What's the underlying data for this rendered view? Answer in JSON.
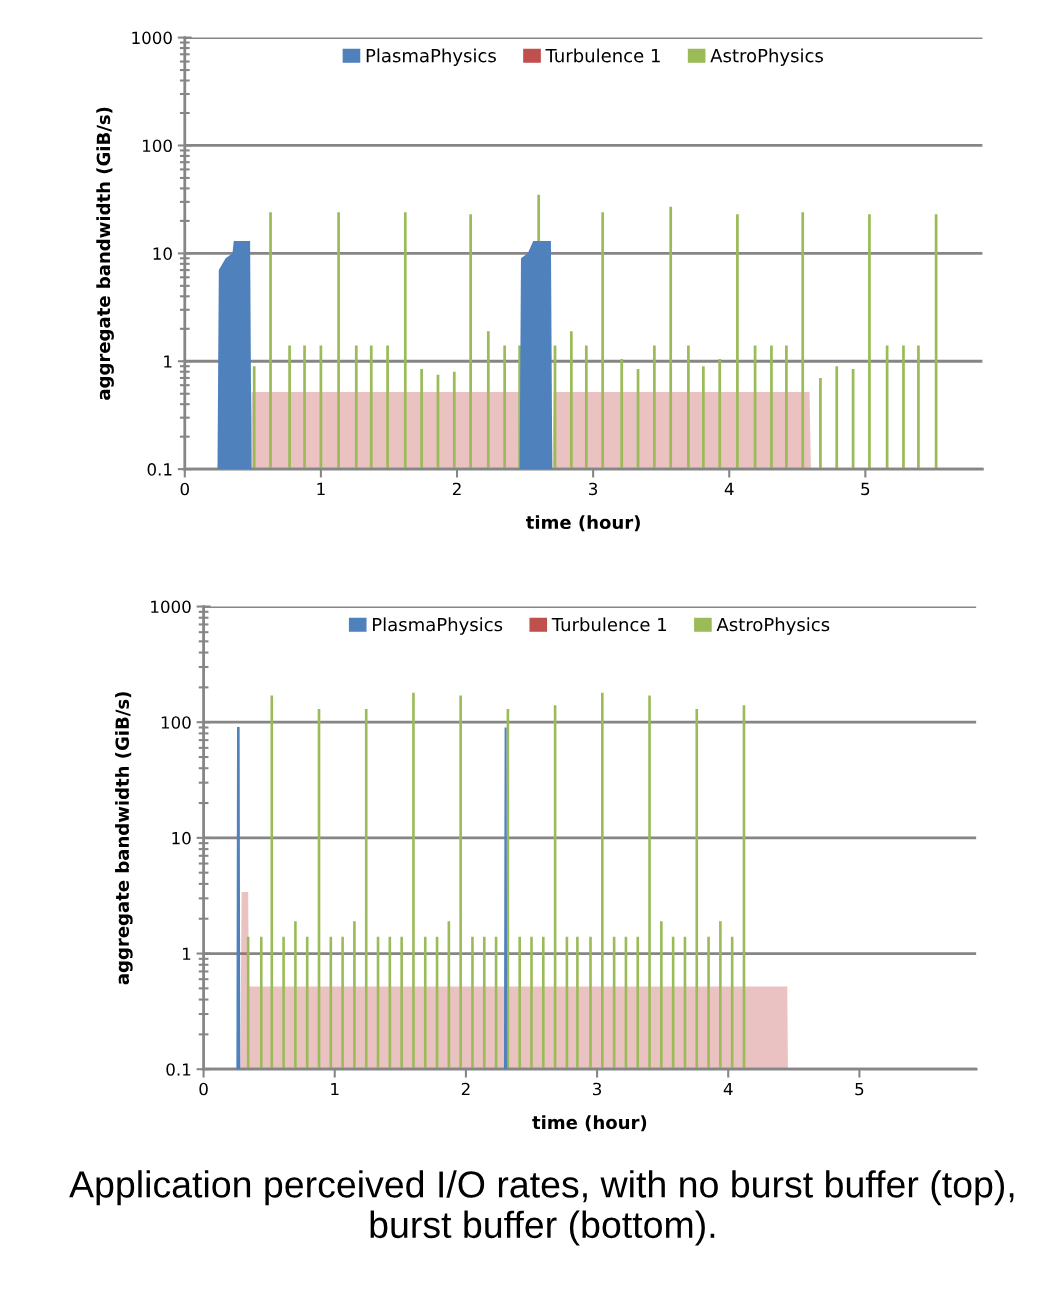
{
  "chart_data": [
    {
      "type": "bar",
      "xlabel": "time (hour)",
      "ylabel": "aggregate bandwidth (GiB/s)",
      "log": "y",
      "grid": "y",
      "legend": "top",
      "xlim": [
        0,
        5.86
      ],
      "xticks": [
        0,
        1,
        2,
        3,
        4,
        5
      ],
      "ylim": [
        0.1,
        1000
      ],
      "yticks": [
        0.1,
        1,
        10,
        100,
        1000
      ],
      "series": [
        {
          "name": "PlasmaPhysics",
          "type": "area",
          "color": "#4f81bd",
          "x": [
            0,
            0.24,
            0.25,
            0.3,
            0.35,
            0.36,
            0.48,
            0.49,
            2.46,
            2.47,
            2.52,
            2.56,
            2.69,
            2.7,
            5.86
          ],
          "values": [
            0.1,
            0.1,
            7,
            9,
            10,
            13,
            13,
            0.1,
            0.1,
            9,
            10,
            13,
            13,
            0.1,
            0.1
          ]
        },
        {
          "name": "Turbulence 1",
          "type": "area",
          "color": "#c0504d",
          "x": [
            0.48,
            0.49,
            2.46,
            2.47,
            2.7,
            2.71,
            4.59,
            4.6
          ],
          "values": [
            0.1,
            0.52,
            0.52,
            0.1,
            0.1,
            0.52,
            0.52,
            0.1
          ]
        },
        {
          "name": "AstroPhysics",
          "color": "#9bbb59",
          "x": [
            0.51,
            0.63,
            0.77,
            0.88,
            1.0,
            1.13,
            1.26,
            1.37,
            1.49,
            1.62,
            1.74,
            1.86,
            1.98,
            2.1,
            2.23,
            2.35,
            2.46,
            2.6,
            2.72,
            2.84,
            2.95,
            3.07,
            3.21,
            3.33,
            3.45,
            3.57,
            3.7,
            3.81,
            3.93,
            4.06,
            4.19,
            4.31,
            4.42,
            4.54,
            4.67,
            4.79,
            4.91,
            5.03,
            5.16,
            5.28,
            5.39,
            5.52
          ],
          "values": [
            0.9,
            24,
            1.4,
            1.4,
            1.4,
            24,
            1.4,
            1.4,
            1.4,
            24,
            0.85,
            0.75,
            0.8,
            23,
            1.9,
            1.4,
            1.4,
            35,
            1.4,
            1.9,
            1.4,
            24,
            1.05,
            0.85,
            1.4,
            27,
            1.4,
            0.9,
            1.05,
            23,
            1.4,
            1.4,
            1.4,
            24,
            0.7,
            0.9,
            0.85,
            23,
            1.4,
            1.4,
            1.4,
            23
          ]
        }
      ]
    },
    {
      "type": "bar",
      "xlabel": "time (hour)",
      "ylabel": "aggregate bandwidth (GiB/s)",
      "log": "y",
      "grid": "y",
      "legend": "top",
      "xlim": [
        0,
        5.89
      ],
      "xticks": [
        0,
        1,
        2,
        3,
        4,
        5
      ],
      "ylim": [
        0.1,
        1000
      ],
      "yticks": [
        0.1,
        1,
        10,
        100,
        1000
      ],
      "annotations": [
        "Application perceived I/O rates, with no burst buffer (top), burst buffer (bottom)."
      ],
      "series": [
        {
          "name": "PlasmaPhysics",
          "type": "area",
          "color": "#4f81bd",
          "x": [
            0,
            0.25,
            0.255,
            0.275,
            0.28,
            2.29,
            2.295,
            2.31,
            2.315,
            5.89
          ],
          "values": [
            0.1,
            0.1,
            91,
            91,
            0.1,
            0.1,
            90,
            90,
            0.1,
            0.1
          ]
        },
        {
          "name": "Turbulence 1",
          "type": "area",
          "color": "#c0504d",
          "x": [
            0.28,
            0.29,
            0.34,
            0.345,
            4.45,
            4.455
          ],
          "values": [
            0.1,
            3.4,
            3.4,
            0.52,
            0.52,
            0.1
          ]
        },
        {
          "name": "AstroPhysics",
          "color": "#9bbb59",
          "x": [
            0.34,
            0.44,
            0.52,
            0.61,
            0.7,
            0.79,
            0.88,
            0.97,
            1.06,
            1.15,
            1.24,
            1.33,
            1.42,
            1.51,
            1.6,
            1.69,
            1.78,
            1.87,
            1.96,
            2.05,
            2.14,
            2.23,
            2.32,
            2.41,
            2.5,
            2.59,
            2.68,
            2.77,
            2.85,
            2.95,
            3.04,
            3.13,
            3.22,
            3.31,
            3.4,
            3.49,
            3.58,
            3.67,
            3.76,
            3.85,
            3.94,
            4.03,
            4.12
          ],
          "values": [
            1.4,
            1.4,
            170,
            1.4,
            1.9,
            1.4,
            130,
            1.4,
            1.4,
            1.9,
            130,
            1.4,
            1.4,
            1.4,
            180,
            1.4,
            1.4,
            1.9,
            170,
            1.4,
            1.4,
            1.4,
            130,
            1.4,
            1.4,
            1.4,
            140,
            1.4,
            1.4,
            1.4,
            180,
            1.4,
            1.4,
            1.4,
            170,
            1.9,
            1.4,
            1.4,
            130,
            1.4,
            1.9,
            1.4,
            140
          ]
        }
      ]
    }
  ]
}
